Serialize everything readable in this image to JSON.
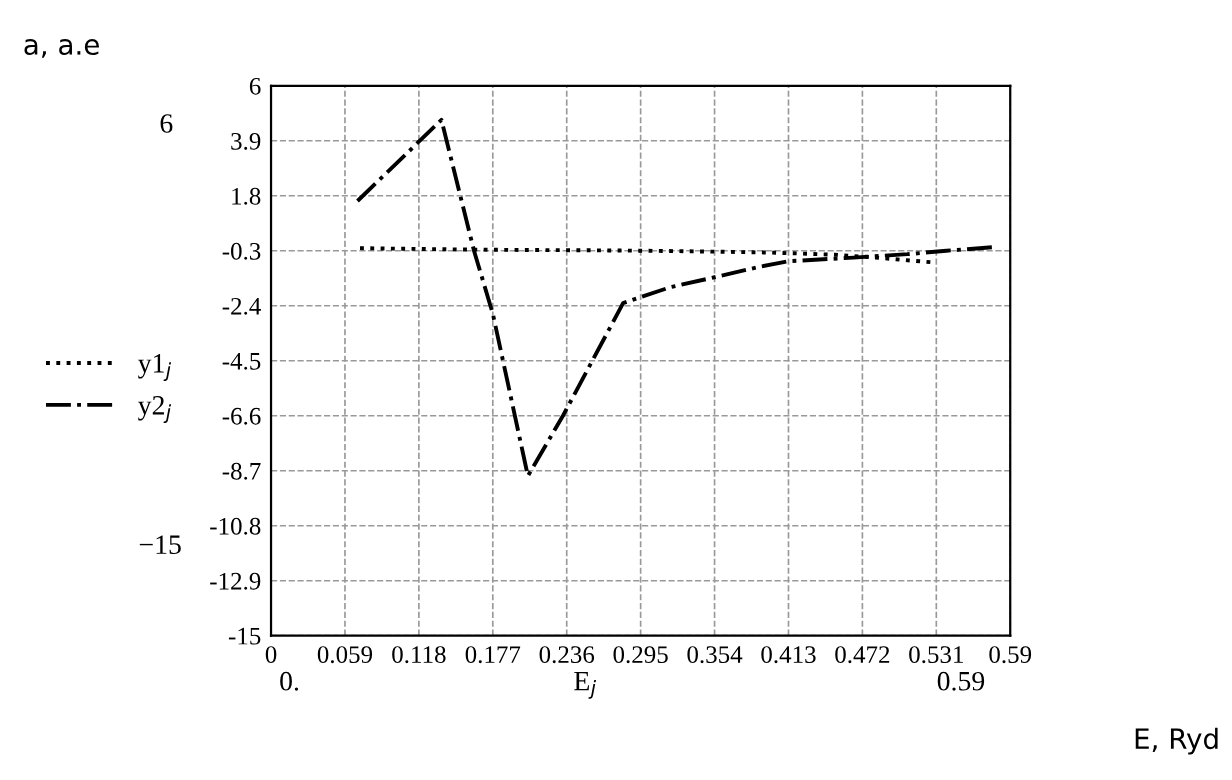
{
  "chart_data": {
    "type": "line",
    "xlabel": "E, Ryd",
    "ylabel": "a, a.e",
    "annotations": [
      "E$_{j}$",
      "6",
      "−15",
      "0.",
      "0.59"
    ],
    "xlim": [
      0,
      0.59
    ],
    "xticks": [
      0,
      0.059,
      0.118,
      0.177,
      0.236,
      0.295,
      0.354,
      0.413,
      0.472,
      0.531,
      0.59
    ],
    "ylim": [
      -15,
      6
    ],
    "yticks": [
      6,
      3.9,
      1.8,
      -0.3,
      -2.4,
      -4.5,
      -6.6,
      -8.7,
      -10.8,
      -12.9,
      -15
    ],
    "grid": true,
    "legend": "left",
    "series": [
      {
        "name": "y1$_{j}$",
        "color": "#000000",
        "line_style": "dotted",
        "x": [
          0.071,
          0.1,
          0.15,
          0.2,
          0.25,
          0.3,
          0.35,
          0.4,
          0.45,
          0.48,
          0.51,
          0.53
        ],
        "values": [
          -0.2,
          -0.22,
          -0.25,
          -0.27,
          -0.28,
          -0.3,
          -0.33,
          -0.37,
          -0.45,
          -0.55,
          -0.67,
          -0.75
        ]
      },
      {
        "name": "y2$_{j}$",
        "color": "#000000",
        "line_style": "dashdot",
        "x": [
          0.069,
          0.136,
          0.162,
          0.177,
          0.205,
          0.233,
          0.281,
          0.318,
          0.355,
          0.391,
          0.413,
          0.465,
          0.508,
          0.539,
          0.58
        ],
        "values": [
          1.6,
          4.7,
          -0.3,
          -2.7,
          -8.9,
          -6.6,
          -2.3,
          -1.7,
          -1.3,
          -0.9,
          -0.7,
          -0.56,
          -0.43,
          -0.3,
          -0.15
        ]
      }
    ]
  }
}
